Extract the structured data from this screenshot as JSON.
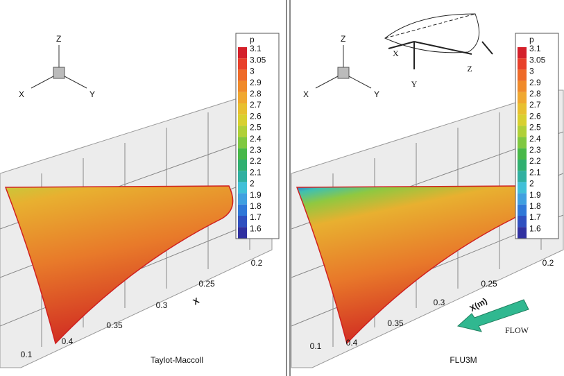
{
  "panels": [
    {
      "caption": "Taylot-Maccoll",
      "axis_label": "X",
      "axis_ticks": [
        "0.1",
        "0.4",
        "0.35",
        "0.3",
        "0.25",
        "0.2"
      ],
      "triad": [
        "Z",
        "X",
        "Y"
      ],
      "legend": {
        "title": "p",
        "levels": [
          "3.1",
          "3.05",
          "3",
          "2.9",
          "2.8",
          "2.7",
          "2.6",
          "2.5",
          "2.4",
          "2.3",
          "2.2",
          "2.1",
          "2",
          "1.9",
          "1.8",
          "1.7",
          "1.6"
        ]
      }
    },
    {
      "caption": "FLU3M",
      "axis_label": "X(m)",
      "axis_ticks": [
        "0.1",
        "0.4",
        "0.35",
        "0.3",
        "0.25",
        "0.2"
      ],
      "triad": [
        "Z",
        "X",
        "Y"
      ],
      "legend": {
        "title": "p",
        "levels": [
          "3.1",
          "3.05",
          "3",
          "2.9",
          "2.8",
          "2.7",
          "2.6",
          "2.5",
          "2.4",
          "2.3",
          "2.2",
          "2.1",
          "2",
          "1.9",
          "1.8",
          "1.7",
          "1.6"
        ]
      }
    }
  ],
  "legend_colors": [
    "#d4202a",
    "#e8402a",
    "#ee6a28",
    "#f08a2a",
    "#f0a830",
    "#e8c030",
    "#d8d030",
    "#b0d038",
    "#80c840",
    "#48b848",
    "#30b070",
    "#30b0a0",
    "#40c0d8",
    "#40a0e0",
    "#3078d8",
    "#3050c0",
    "#3030a0"
  ],
  "inset": {
    "labels": [
      "X",
      "Y",
      "Z"
    ]
  },
  "flow_label": "FLOW"
}
